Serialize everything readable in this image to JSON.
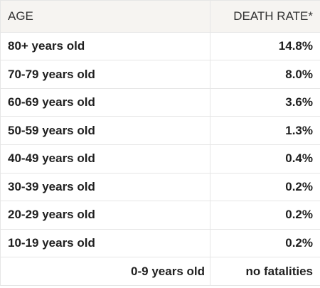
{
  "table": {
    "headers": {
      "age": "AGE",
      "rate": "DEATH RATE*"
    },
    "rows": [
      {
        "age": "80+ years old",
        "rate": "14.8%"
      },
      {
        "age": "70-79 years old",
        "rate": "8.0%"
      },
      {
        "age": "60-69 years old",
        "rate": "3.6%"
      },
      {
        "age": "50-59 years old",
        "rate": "1.3%"
      },
      {
        "age": "40-49 years old",
        "rate": "0.4%"
      },
      {
        "age": "30-39 years old",
        "rate": "0.2%"
      },
      {
        "age": "20-29 years old",
        "rate": "0.2%"
      },
      {
        "age": "10-19 years old",
        "rate": "0.2%"
      },
      {
        "age": "0-9 years old",
        "rate": "no fatalities"
      }
    ]
  },
  "colors": {
    "header_background": "#f6f4f1",
    "border": "#e6e6e6",
    "text": "#1f1f1f"
  }
}
